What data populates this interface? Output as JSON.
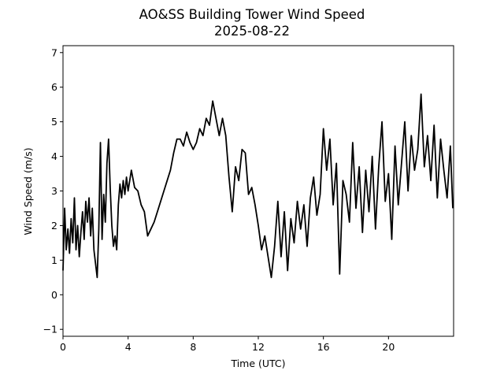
{
  "chart_data": {
    "type": "line",
    "title": "AO&SS Building Tower Wind Speed",
    "subtitle": "2025-08-22",
    "xlabel": "Time (UTC)",
    "ylabel": "Wind Speed (m/s)",
    "xlim": [
      0,
      24
    ],
    "ylim": [
      -1.2,
      7.2
    ],
    "xticks": [
      0,
      4,
      8,
      12,
      16,
      20
    ],
    "xtick_labels": [
      "0",
      "4",
      "8",
      "12",
      "16",
      "20"
    ],
    "yticks": [
      -1,
      0,
      1,
      2,
      3,
      4,
      5,
      6,
      7
    ],
    "ytick_labels": [
      "−1",
      "0",
      "1",
      "2",
      "3",
      "4",
      "5",
      "6",
      "7"
    ],
    "grid": false,
    "series": [
      {
        "color": "#000000",
        "x": [
          0.0,
          0.1,
          0.2,
          0.3,
          0.4,
          0.5,
          0.6,
          0.7,
          0.8,
          0.9,
          1.0,
          1.1,
          1.2,
          1.3,
          1.4,
          1.5,
          1.6,
          1.7,
          1.8,
          1.9,
          2.0,
          2.1,
          2.2,
          2.3,
          2.4,
          2.5,
          2.6,
          2.7,
          2.8,
          2.9,
          3.0,
          3.1,
          3.2,
          3.3,
          3.4,
          3.5,
          3.6,
          3.7,
          3.8,
          3.9,
          4.0,
          4.2,
          4.4,
          4.6,
          4.8,
          5.0,
          5.2,
          5.4,
          5.6,
          5.8,
          6.0,
          6.2,
          6.4,
          6.6,
          6.8,
          7.0,
          7.2,
          7.4,
          7.6,
          7.8,
          8.0,
          8.2,
          8.4,
          8.6,
          8.8,
          9.0,
          9.2,
          9.4,
          9.6,
          9.8,
          10.0,
          10.2,
          10.4,
          10.6,
          10.8,
          11.0,
          11.2,
          11.4,
          11.6,
          11.8,
          12.0,
          12.2,
          12.4,
          12.6,
          12.8,
          13.0,
          13.2,
          13.4,
          13.6,
          13.8,
          14.0,
          14.2,
          14.4,
          14.6,
          14.8,
          15.0,
          15.2,
          15.4,
          15.6,
          15.8,
          16.0,
          16.2,
          16.4,
          16.6,
          16.8,
          17.0,
          17.2,
          17.4,
          17.6,
          17.8,
          18.0,
          18.2,
          18.4,
          18.6,
          18.8,
          19.0,
          19.2,
          19.4,
          19.6,
          19.8,
          20.0,
          20.2,
          20.4,
          20.6,
          20.8,
          21.0,
          21.2,
          21.4,
          21.6,
          21.8,
          22.0,
          22.2,
          22.4,
          22.6,
          22.8,
          23.0,
          23.2,
          23.4,
          23.6,
          23.8,
          23.95
        ],
        "y": [
          0.7,
          2.5,
          1.3,
          1.9,
          1.2,
          2.2,
          1.5,
          2.8,
          1.3,
          2.0,
          1.1,
          1.8,
          2.4,
          1.6,
          2.7,
          2.1,
          2.8,
          1.7,
          2.5,
          1.3,
          0.9,
          0.5,
          1.9,
          4.4,
          1.6,
          2.9,
          2.1,
          3.8,
          4.5,
          3.1,
          2.0,
          1.4,
          1.7,
          1.3,
          2.6,
          3.2,
          2.8,
          3.3,
          2.9,
          3.4,
          3.0,
          3.6,
          3.1,
          3.0,
          2.6,
          2.4,
          1.7,
          1.9,
          2.1,
          2.4,
          2.7,
          3.0,
          3.3,
          3.6,
          4.1,
          4.5,
          4.5,
          4.3,
          4.7,
          4.4,
          4.2,
          4.4,
          4.8,
          4.6,
          5.1,
          4.9,
          5.6,
          5.1,
          4.6,
          5.1,
          4.6,
          3.4,
          2.4,
          3.7,
          3.3,
          4.2,
          4.1,
          2.9,
          3.1,
          2.6,
          2.0,
          1.3,
          1.7,
          1.1,
          0.5,
          1.4,
          2.7,
          1.1,
          2.4,
          0.7,
          2.2,
          1.5,
          2.7,
          1.9,
          2.6,
          1.4,
          2.8,
          3.4,
          2.3,
          2.9,
          4.8,
          3.6,
          4.5,
          2.6,
          3.8,
          0.6,
          3.3,
          2.9,
          2.1,
          4.4,
          2.5,
          3.7,
          1.8,
          3.6,
          2.4,
          4.0,
          1.9,
          3.7,
          5.0,
          2.7,
          3.5,
          1.6,
          4.3,
          2.6,
          3.8,
          5.0,
          3.0,
          4.6,
          3.6,
          4.2,
          5.8,
          3.7,
          4.6,
          3.3,
          4.9,
          2.8,
          4.5,
          3.6,
          2.8,
          4.3,
          2.5
        ]
      }
    ]
  }
}
